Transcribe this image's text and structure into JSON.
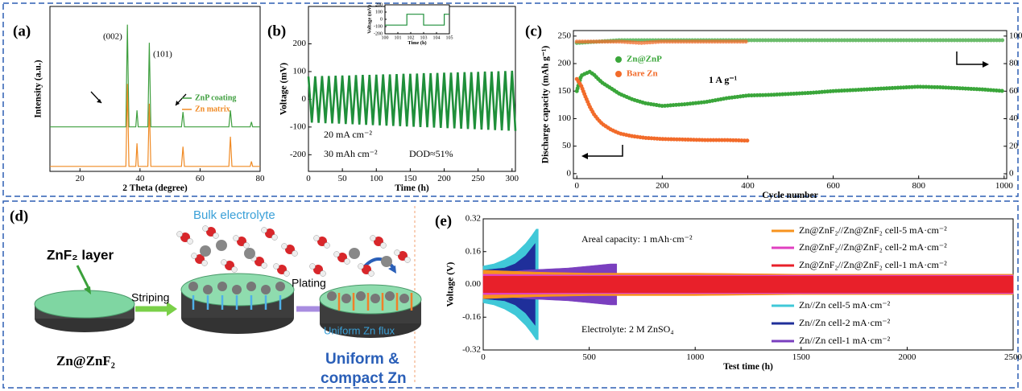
{
  "chart_data": [
    {
      "type": "line",
      "label": "(a)",
      "xlabel": "2 Theta (degree)",
      "ylabel": "Intensity (a.u.)",
      "xlim": [
        10,
        80
      ],
      "xticks": [
        20,
        40,
        60,
        80
      ],
      "ylim": [
        0,
        100
      ],
      "annotations": [
        "(002)",
        "(101)"
      ],
      "x": [
        10,
        35.3,
        35.8,
        36.3,
        38.6,
        39,
        39.4,
        42.6,
        43.1,
        43.6,
        53.8,
        54.3,
        54.8,
        69.6,
        70.1,
        70.6,
        76.7,
        77.1,
        77.5,
        80
      ],
      "series": [
        {
          "name": "ZnP coating",
          "color": "#3f9f3f",
          "values": [
            27,
            27,
            89,
            27,
            27,
            37,
            27,
            27,
            78,
            27,
            27,
            36,
            27,
            27,
            37,
            27,
            27,
            30,
            27,
            27
          ]
        },
        {
          "name": "Zn matrix",
          "color": "#f08a24",
          "values": [
            3,
            3,
            53,
            3,
            3,
            17,
            3,
            3,
            41,
            3,
            3,
            15,
            3,
            3,
            21,
            3,
            3,
            6,
            3,
            3
          ]
        }
      ]
    },
    {
      "type": "line",
      "label": "(b)",
      "xlabel": "Time (h)",
      "ylabel": "Voltage (mV)",
      "xlim": [
        0,
        305
      ],
      "xticks": [
        0,
        50,
        100,
        150,
        200,
        250,
        300
      ],
      "ylim": [
        -260,
        335
      ],
      "yticks": [
        -200,
        -100,
        0,
        100,
        200
      ],
      "annotations": [
        "20 mA cm⁻²",
        "30 mAh cm⁻²",
        "DOD≈51%"
      ],
      "color": "#1f8f3a",
      "x": [
        0,
        5,
        10,
        15,
        20,
        25,
        30,
        35,
        40,
        45,
        50,
        55,
        60,
        65,
        70,
        75,
        80,
        85,
        90,
        95,
        100,
        105,
        110,
        115,
        120,
        125,
        130,
        135,
        140,
        145,
        150,
        155,
        160,
        165,
        170,
        175,
        180,
        185,
        190,
        195,
        200,
        205,
        210,
        215,
        220,
        225,
        230,
        235,
        240,
        245,
        250,
        255,
        260,
        265,
        270,
        275,
        280,
        285,
        290,
        295,
        300,
        305
      ],
      "values": [
        82,
        -84,
        83,
        -85,
        84,
        -86,
        84,
        -87,
        85,
        -88,
        86,
        -89,
        86,
        -90,
        87,
        -91,
        88,
        -92,
        88,
        -93,
        89,
        -94,
        90,
        -95,
        90,
        -96,
        91,
        -97,
        92,
        -98,
        92,
        -99,
        93,
        -100,
        94,
        -101,
        94,
        -102,
        95,
        -103,
        96,
        -104,
        96,
        -105,
        97,
        -106,
        98,
        -107,
        98,
        -108,
        99,
        -109,
        100,
        -110,
        100,
        -111,
        101,
        -112,
        102,
        -113,
        103,
        -114
      ],
      "inset": {
        "xlabel": "Time (h)",
        "ylabel": "Voltage (mV)",
        "xlim": [
          100,
          105
        ],
        "xticks": [
          100,
          101,
          102,
          103,
          104,
          105
        ],
        "ylim": [
          -200,
          200
        ],
        "yticks": [
          -200,
          -100,
          0,
          100,
          200
        ],
        "color": "#1f8f3a",
        "x": [
          100,
          101.7,
          101.7,
          103,
          103,
          104.6,
          104.6,
          105
        ],
        "values": [
          -80,
          -80,
          70,
          70,
          -80,
          -80,
          70,
          70
        ]
      }
    },
    {
      "type": "scatter",
      "label": "(c)",
      "xlabel": "Cycle number",
      "ylabel": "Discharge capacity (mAh g⁻¹)",
      "y2label": "Coulombic efficiency (%)",
      "xlim": [
        -8,
        1006
      ],
      "xticks": [
        0,
        200,
        400,
        600,
        800,
        1000
      ],
      "ylim": [
        -9,
        260
      ],
      "yticks": [
        0,
        50,
        100,
        150,
        200,
        250
      ],
      "y2lim": [
        -3.5,
        104
      ],
      "y2ticks": [
        0,
        20,
        40,
        60,
        80,
        100
      ],
      "annotations": [
        "1 A g⁻¹"
      ],
      "series": [
        {
          "name": "Zn@ZnP",
          "color": "#3aa63a",
          "x": [
            0,
            10,
            20,
            30,
            40,
            50,
            60,
            80,
            100,
            130,
            160,
            200,
            250,
            300,
            350,
            400,
            450,
            500,
            550,
            600,
            650,
            700,
            750,
            800,
            850,
            900,
            950,
            1000
          ],
          "values": [
            150,
            178,
            182,
            185,
            180,
            172,
            165,
            155,
            145,
            135,
            128,
            123,
            126,
            130,
            137,
            142,
            143,
            145,
            147,
            150,
            152,
            154,
            156,
            158,
            157,
            155,
            153,
            150
          ],
          "efficiency": {
            "axis": "y2",
            "x": [
              0,
              100,
              200,
              300,
              400,
              500,
              600,
              700,
              800,
              900,
              1000
            ],
            "values": [
              95,
              97,
              97,
              97,
              97,
              97,
              97,
              97,
              97,
              97,
              97
            ]
          }
        },
        {
          "name": "Bare Zn",
          "color": "#f26b2a",
          "x": [
            0,
            10,
            20,
            30,
            40,
            50,
            60,
            80,
            100,
            130,
            160,
            200,
            250,
            300,
            350,
            400
          ],
          "values": [
            172,
            160,
            140,
            122,
            108,
            98,
            90,
            80,
            73,
            68,
            65,
            63,
            62,
            61,
            61,
            60
          ],
          "efficiency": {
            "axis": "y2",
            "x": [
              0,
              50,
              100,
              150,
              200,
              250,
              300,
              350,
              400
            ],
            "values": [
              96,
              96,
              96,
              95,
              96,
              96,
              96,
              96,
              96
            ]
          }
        }
      ]
    },
    {
      "type": "area",
      "label": "(e)",
      "xlabel": "Test time (h)",
      "ylabel": "Voltage (V)",
      "xlim": [
        0,
        2500
      ],
      "xticks": [
        0,
        500,
        1000,
        1500,
        2000,
        2500
      ],
      "ylim": [
        -0.32,
        0.32
      ],
      "yticks": [
        -0.32,
        -0.16,
        {
          "value": 0,
          "label": "0.00"
        },
        0.16,
        0.32
      ],
      "annotations": [
        "Areal capacity: 1 mAh·cm⁻²",
        "Electrolyte: 2 M ZnSO₄"
      ],
      "series": [
        {
          "name": "Zn@ZnF₂//Zn@ZnF₂ cell-5 mA·cm⁻²",
          "color": "#f7931e",
          "x": [
            0,
            250,
            500,
            1000,
            1500,
            2000,
            2500
          ],
          "high": [
            0.07,
            0.06,
            0.055,
            0.055,
            0.05,
            0.05,
            0.05
          ],
          "low": [
            -0.07,
            -0.06,
            -0.055,
            -0.055,
            -0.05,
            -0.05,
            -0.05
          ]
        },
        {
          "name": "Zn@ZnF₂//Zn@ZnF₂ cell-2 mA·cm⁻²",
          "color": "#e040c0",
          "x": [
            0,
            500,
            1000,
            1500,
            2000,
            2500
          ],
          "high": [
            0.05,
            0.045,
            0.045,
            0.045,
            0.045,
            0.045
          ],
          "low": [
            -0.05,
            -0.045,
            -0.045,
            -0.045,
            -0.045,
            -0.045
          ]
        },
        {
          "name": "Zn@ZnF₂//Zn@ZnF₂ cell-1 mA·cm⁻²",
          "color": "#e8202a",
          "x": [
            0,
            500,
            1000,
            1500,
            2000,
            2500
          ],
          "high": [
            0.04,
            0.04,
            0.04,
            0.04,
            0.04,
            0.04
          ],
          "low": [
            -0.04,
            -0.04,
            -0.04,
            -0.04,
            -0.04,
            -0.04
          ]
        },
        {
          "name": "Zn//Zn cell-5 mA·cm⁻²",
          "color": "#40c8d8",
          "x": [
            0,
            50,
            100,
            150,
            200,
            230,
            250,
            260
          ],
          "high": [
            0.09,
            0.1,
            0.12,
            0.15,
            0.2,
            0.24,
            0.27,
            0.27
          ],
          "low": [
            -0.09,
            -0.1,
            -0.12,
            -0.15,
            -0.2,
            -0.24,
            -0.27,
            -0.27
          ]
        },
        {
          "name": "Zn//Zn cell-2 mA·cm⁻²",
          "color": "#1f2f9a",
          "x": [
            0,
            100,
            150,
            200,
            230,
            245
          ],
          "high": [
            0.07,
            0.08,
            0.1,
            0.14,
            0.18,
            0.2
          ],
          "low": [
            -0.07,
            -0.08,
            -0.1,
            -0.14,
            -0.18,
            -0.2
          ]
        },
        {
          "name": "Zn//Zn cell-1 mA·cm⁻²",
          "color": "#7a3fbf",
          "x": [
            0,
            100,
            200,
            300,
            400,
            500,
            600,
            630
          ],
          "high": [
            0.05,
            0.06,
            0.07,
            0.075,
            0.08,
            0.09,
            0.1,
            0.1
          ],
          "low": [
            -0.05,
            -0.06,
            -0.07,
            -0.075,
            -0.08,
            -0.09,
            -0.1,
            -0.1
          ]
        }
      ]
    }
  ],
  "diagram": {
    "label": "(d)",
    "bulk_electrolyte": "Bulk electrolyte",
    "layer": "ZnF₂ layer",
    "striping": "Striping",
    "plating": "Plating",
    "flux": "Uniform Zn flux",
    "electrode": "Zn@ZnF₂",
    "result": [
      "Uniform &",
      "compact Zn"
    ]
  }
}
